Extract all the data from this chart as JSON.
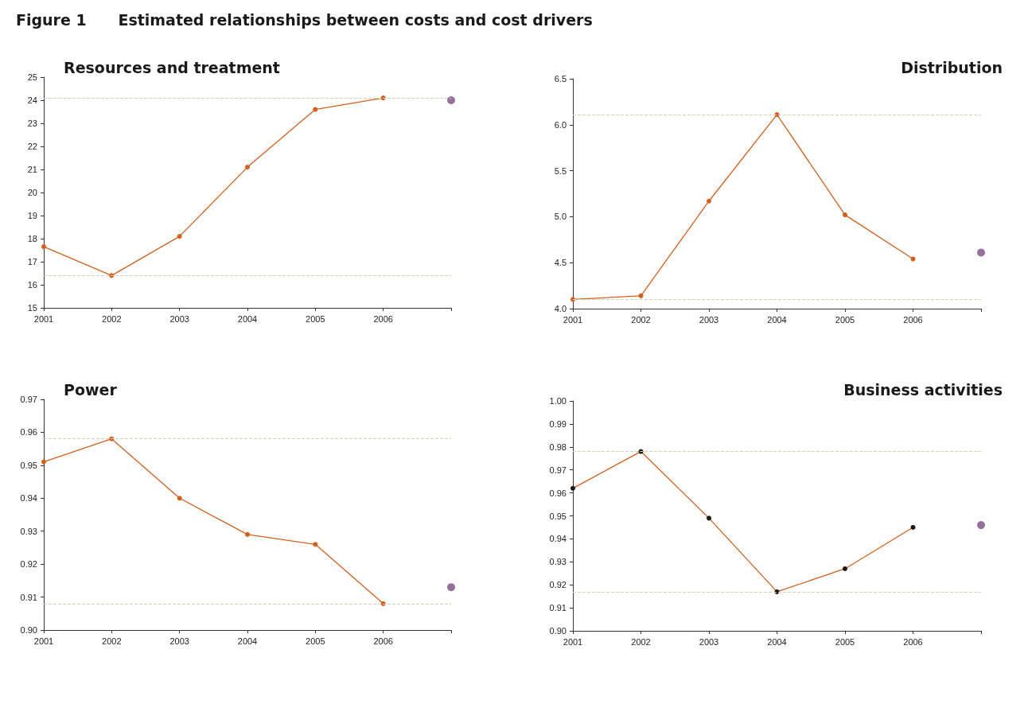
{
  "chart_data": [
    {
      "type": "other",
      "title": "Figure 1      Estimated relationships between costs and cost drivers"
    },
    {
      "type": "line",
      "title": "Resources and treatment",
      "categories": [
        "2001",
        "2002",
        "2003",
        "2004",
        "2005",
        "2006",
        null
      ],
      "marker": "circle",
      "ylim": [
        15,
        25
      ],
      "yticks": [
        15,
        16,
        17,
        18,
        19,
        20,
        21,
        22,
        23,
        24,
        25
      ],
      "series": [
        {
          "color": "#d2601e",
          "values": [
            17.65,
            16.4,
            18.1,
            21.1,
            23.6,
            24.1,
            null
          ]
        },
        {
          "type": "scatter",
          "color": "#7b4c82",
          "values": [
            null,
            null,
            null,
            null,
            null,
            null,
            24.0
          ]
        }
      ],
      "ref_lines": [
        {
          "axis": "y",
          "value": 24.1,
          "color": "#ccd4bc",
          "line_style": "dashed"
        },
        {
          "axis": "y",
          "value": 16.4,
          "color": "#ccd4bc",
          "line_style": "dashed"
        }
      ]
    },
    {
      "type": "line",
      "title": "Distribution",
      "categories": [
        "2001",
        "2002",
        "2003",
        "2004",
        "2005",
        "2006",
        null
      ],
      "marker": "circle",
      "ylim": [
        4,
        6.5
      ],
      "yticks": [
        {
          "value": 4,
          "label": "4.0"
        },
        4.5,
        {
          "value": 5,
          "label": "5.0"
        },
        5.5,
        {
          "value": 6,
          "label": "6.0"
        },
        6.5
      ],
      "series": [
        {
          "color": "#d2601e",
          "values": [
            4.1,
            4.14,
            5.17,
            6.11,
            5.02,
            4.54,
            null
          ]
        },
        {
          "type": "scatter",
          "color": "#7b4c82",
          "values": [
            null,
            null,
            null,
            null,
            null,
            null,
            4.61
          ]
        }
      ],
      "ref_lines": [
        {
          "axis": "y",
          "value": 6.11,
          "color": "#ccd4bc",
          "line_style": "dashed"
        },
        {
          "axis": "y",
          "value": 4.1,
          "color": "#ccd4bc",
          "line_style": "dashed"
        }
      ]
    },
    {
      "type": "line",
      "title": "Power",
      "categories": [
        "2001",
        "2002",
        "2003",
        "2004",
        "2005",
        "2006",
        null
      ],
      "marker": "circle",
      "ylim": [
        0.9,
        0.97
      ],
      "yticks": [
        {
          "value": 0.9,
          "label": "0.90"
        },
        0.91,
        0.92,
        0.93,
        0.94,
        0.95,
        0.96,
        0.97
      ],
      "series": [
        {
          "color": "#d2601e",
          "values": [
            0.951,
            0.958,
            0.94,
            0.929,
            0.926,
            0.908,
            null
          ]
        },
        {
          "type": "scatter",
          "color": "#7b4c82",
          "values": [
            null,
            null,
            null,
            null,
            null,
            null,
            0.913
          ]
        }
      ],
      "ref_lines": [
        {
          "axis": "y",
          "value": 0.958,
          "color": "#ccd4bc",
          "line_style": "dashed"
        },
        {
          "axis": "y",
          "value": 0.908,
          "color": "#ccd4bc",
          "line_style": "dashed"
        }
      ]
    },
    {
      "type": "line",
      "title": "Business activities",
      "categories": [
        "2001",
        "2002",
        "2003",
        "2004",
        "2005",
        "2006",
        null
      ],
      "marker": "circle",
      "ylim": [
        0.9,
        1
      ],
      "yticks": [
        {
          "value": 0.9,
          "label": "0.90"
        },
        0.91,
        0.92,
        0.93,
        0.94,
        0.95,
        0.96,
        0.97,
        0.98,
        0.99,
        {
          "value": 1,
          "label": "1.00"
        }
      ],
      "series": [
        {
          "color": "#d2601e",
          "colors": [
            "#1a1a1a",
            "#1a1a1a",
            "#1a1a1a",
            "#1a1a1a",
            "#1a1a1a",
            "#1a1a1a",
            null
          ],
          "values": [
            0.962,
            0.978,
            0.949,
            0.917,
            0.927,
            0.945,
            null
          ]
        },
        {
          "type": "scatter",
          "color": "#7b4c82",
          "values": [
            null,
            null,
            null,
            null,
            null,
            null,
            0.946
          ]
        }
      ],
      "ref_lines": [
        {
          "axis": "y",
          "value": 0.978,
          "color": "#ccd4bc",
          "line_style": "dashed"
        },
        {
          "axis": "y",
          "value": 0.917,
          "color": "#ccd4bc",
          "line_style": "dashed"
        }
      ]
    }
  ]
}
